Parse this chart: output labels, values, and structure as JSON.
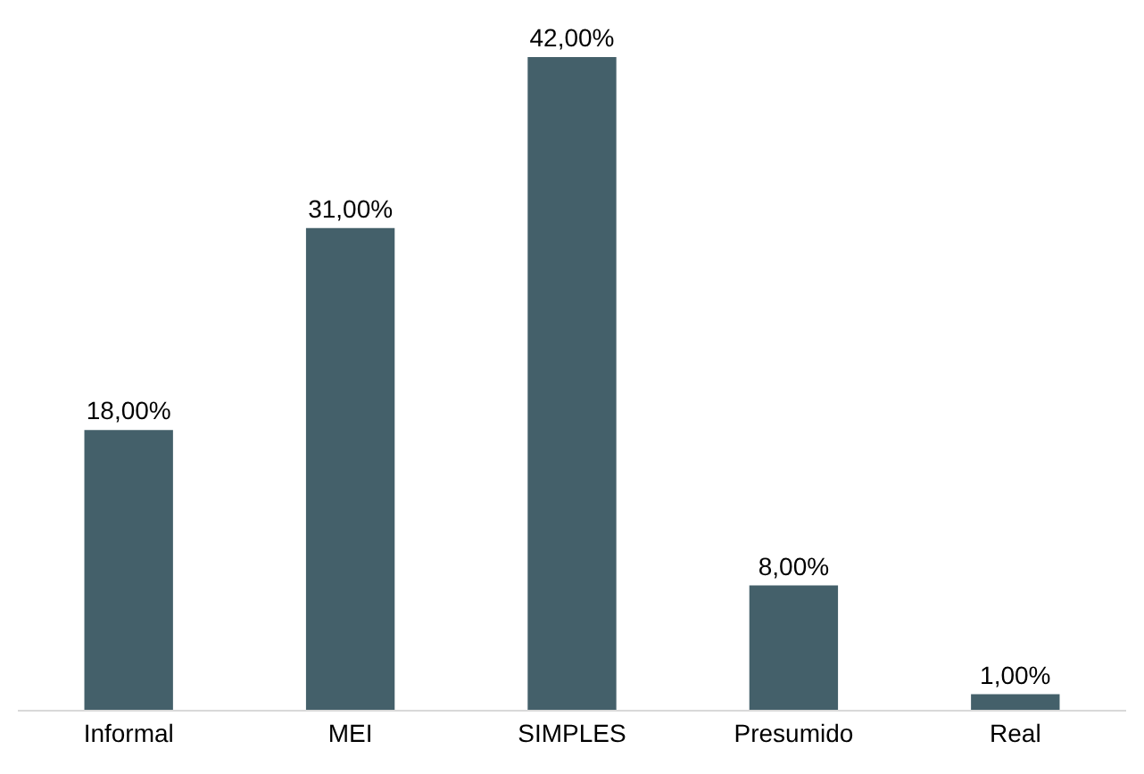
{
  "chart_data": {
    "type": "bar",
    "categories": [
      "Informal",
      "MEI",
      "SIMPLES",
      "Presumido",
      "Real"
    ],
    "values": [
      18,
      31,
      42,
      8,
      1
    ],
    "value_labels": [
      "18,00%",
      "31,00%",
      "42,00%",
      "8,00%",
      "1,00%"
    ],
    "color": "#44606a"
  }
}
